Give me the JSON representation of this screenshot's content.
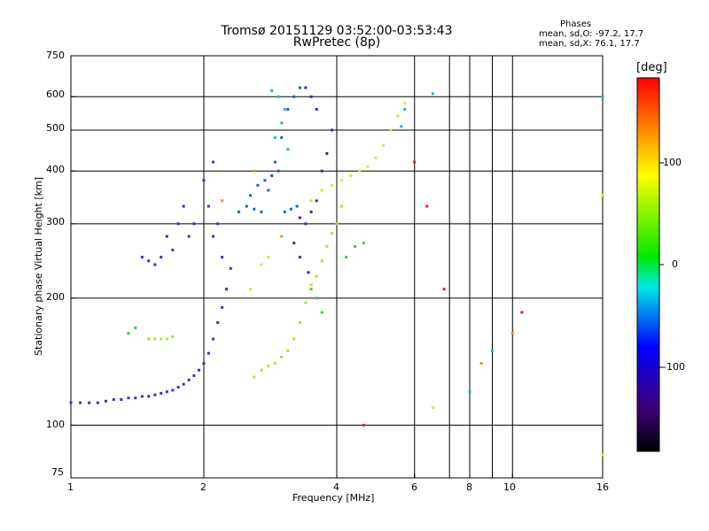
{
  "header": {
    "title_line1": "Tromsø 20151129 03:52:00-03:53:43",
    "title_line2": "RwPretec (8p)"
  },
  "phase_info": {
    "heading": "Phases",
    "line_o": "mean, sd,O: -97.2, 17.7",
    "line_x": "mean, sd,X:  76.1, 17.7"
  },
  "chart_data": {
    "type": "scatter",
    "title": "Tromsø 20151129 03:52:00-03:53:43",
    "subtitle": "RwPretec (8p)",
    "xlabel": "Frequency [MHz]",
    "ylabel": "Stationary phase Virtual Height [km]",
    "x_scale": "log",
    "y_scale": "log",
    "xlim": [
      1,
      16
    ],
    "ylim": [
      75,
      750
    ],
    "x_ticks": [
      "1",
      "2",
      "4",
      "6",
      "8",
      "10",
      "16"
    ],
    "x_tick_values": [
      1,
      2,
      4,
      6,
      8,
      10,
      16
    ],
    "y_ticks": [
      "75",
      "100",
      "200",
      "300",
      "400",
      "500",
      "600",
      "750"
    ],
    "y_tick_values": [
      75,
      100,
      200,
      300,
      400,
      500,
      600,
      750
    ],
    "grid_x": [
      2,
      4,
      6,
      7.2,
      8,
      9,
      10,
      16
    ],
    "grid_y": [
      100,
      200,
      300,
      400,
      500,
      600
    ],
    "colorbar": {
      "label": "[deg]",
      "range": [
        -180,
        180
      ],
      "ticks": [
        "100",
        "0",
        "-100"
      ],
      "tick_values": [
        100,
        0,
        -100
      ]
    },
    "series": [
      {
        "color": "#3030d8",
        "values": [
          [
            1.0,
            113
          ],
          [
            1.05,
            113
          ],
          [
            1.1,
            113
          ],
          [
            1.15,
            113
          ],
          [
            1.2,
            114
          ],
          [
            1.25,
            115
          ],
          [
            1.3,
            115
          ],
          [
            1.35,
            116
          ],
          [
            1.4,
            116
          ],
          [
            1.45,
            117
          ],
          [
            1.5,
            117
          ],
          [
            1.55,
            118
          ],
          [
            1.6,
            119
          ],
          [
            1.65,
            120
          ],
          [
            1.7,
            121
          ],
          [
            1.75,
            123
          ],
          [
            1.8,
            125
          ],
          [
            1.85,
            128
          ],
          [
            1.9,
            131
          ],
          [
            1.95,
            135
          ],
          [
            2.0,
            140
          ],
          [
            2.05,
            148
          ],
          [
            2.1,
            160
          ],
          [
            2.15,
            175
          ],
          [
            2.2,
            190
          ],
          [
            2.25,
            210
          ],
          [
            2.3,
            235
          ],
          [
            2.2,
            250
          ],
          [
            2.1,
            280
          ],
          [
            2.15,
            300
          ],
          [
            2.05,
            330
          ],
          [
            2.0,
            380
          ],
          [
            2.1,
            420
          ],
          [
            1.7,
            260
          ],
          [
            1.75,
            300
          ],
          [
            1.8,
            330
          ],
          [
            1.6,
            250
          ],
          [
            1.65,
            280
          ],
          [
            1.55,
            240
          ],
          [
            1.5,
            245
          ],
          [
            1.45,
            250
          ],
          [
            1.85,
            280
          ],
          [
            1.9,
            300
          ]
        ]
      },
      {
        "color": "#1060e8",
        "values": [
          [
            2.4,
            320
          ],
          [
            2.5,
            330
          ],
          [
            2.6,
            325
          ],
          [
            2.7,
            320
          ],
          [
            2.8,
            360
          ],
          [
            2.9,
            420
          ],
          [
            3.0,
            480
          ],
          [
            3.1,
            560
          ],
          [
            3.2,
            600
          ],
          [
            3.3,
            630
          ],
          [
            3.05,
            320
          ],
          [
            3.15,
            325
          ],
          [
            3.25,
            330
          ],
          [
            2.55,
            350
          ],
          [
            2.65,
            370
          ],
          [
            2.75,
            380
          ],
          [
            2.85,
            390
          ],
          [
            2.95,
            400
          ]
        ]
      },
      {
        "color": "#5018b0",
        "values": [
          [
            3.3,
            310
          ],
          [
            3.4,
            300
          ],
          [
            3.5,
            320
          ],
          [
            3.6,
            340
          ],
          [
            3.7,
            400
          ],
          [
            3.8,
            440
          ],
          [
            3.9,
            500
          ],
          [
            3.6,
            560
          ],
          [
            3.5,
            600
          ],
          [
            3.4,
            630
          ],
          [
            3.2,
            270
          ],
          [
            3.3,
            250
          ],
          [
            3.45,
            230
          ]
        ]
      },
      {
        "color": "#10b8e8",
        "values": [
          [
            2.9,
            480
          ],
          [
            3.0,
            520
          ],
          [
            3.05,
            560
          ],
          [
            2.95,
            600
          ],
          [
            2.85,
            620
          ],
          [
            3.1,
            450
          ],
          [
            5.6,
            510
          ],
          [
            5.7,
            560
          ],
          [
            6.6,
            610
          ],
          [
            16.0,
            600
          ],
          [
            9.0,
            150
          ],
          [
            8.0,
            120
          ]
        ]
      },
      {
        "color": "#a8e820",
        "values": [
          [
            1.5,
            160
          ],
          [
            1.55,
            160
          ],
          [
            1.6,
            160
          ],
          [
            1.65,
            160
          ],
          [
            1.7,
            162
          ],
          [
            2.6,
            130
          ],
          [
            2.7,
            135
          ],
          [
            2.8,
            138
          ],
          [
            2.9,
            140
          ],
          [
            3.0,
            145
          ],
          [
            3.1,
            150
          ],
          [
            3.2,
            160
          ],
          [
            3.3,
            175
          ],
          [
            3.4,
            195
          ],
          [
            3.5,
            215
          ],
          [
            3.6,
            225
          ],
          [
            3.7,
            245
          ],
          [
            3.8,
            265
          ],
          [
            3.9,
            285
          ],
          [
            4.0,
            300
          ],
          [
            4.1,
            330
          ]
        ]
      },
      {
        "color": "#e0e818",
        "values": [
          [
            3.5,
            340
          ],
          [
            3.7,
            360
          ],
          [
            3.9,
            370
          ],
          [
            4.1,
            380
          ],
          [
            4.3,
            390
          ],
          [
            4.5,
            400
          ],
          [
            4.7,
            410
          ],
          [
            4.9,
            430
          ],
          [
            5.1,
            460
          ],
          [
            5.3,
            500
          ],
          [
            5.5,
            540
          ],
          [
            5.7,
            580
          ],
          [
            2.55,
            210
          ],
          [
            2.7,
            240
          ],
          [
            2.8,
            250
          ],
          [
            16.0,
            350
          ],
          [
            6.6,
            110
          ],
          [
            16.0,
            85
          ]
        ]
      },
      {
        "color": "#40c840",
        "values": [
          [
            4.2,
            250
          ],
          [
            4.4,
            265
          ],
          [
            4.6,
            270
          ],
          [
            3.5,
            210
          ],
          [
            3.6,
            200
          ],
          [
            3.7,
            185
          ],
          [
            1.35,
            165
          ],
          [
            1.4,
            170
          ]
        ]
      },
      {
        "color": "#e82020",
        "values": [
          [
            6.4,
            330
          ],
          [
            7.0,
            210
          ],
          [
            10.5,
            185
          ],
          [
            6.0,
            420
          ],
          [
            4.6,
            100
          ]
        ]
      },
      {
        "color": "#f09020",
        "values": [
          [
            2.6,
            400
          ],
          [
            2.2,
            340
          ],
          [
            3.0,
            280
          ],
          [
            8.5,
            140
          ],
          [
            10.0,
            165
          ]
        ]
      }
    ]
  }
}
